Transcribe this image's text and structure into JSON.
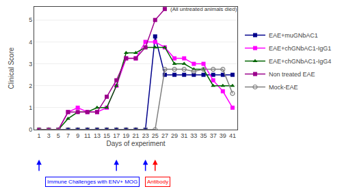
{
  "chart_data": {
    "type": "line",
    "xlabel": "Days of experiment",
    "ylabel": "Clinical Score",
    "x": [
      1,
      3,
      5,
      7,
      9,
      11,
      13,
      15,
      17,
      19,
      21,
      23,
      25,
      27,
      29,
      31,
      33,
      35,
      37,
      39,
      41
    ],
    "series": [
      {
        "name": "EAE+muGNbAC1",
        "color": "#00008B",
        "marker": "square",
        "values": [
          0,
          0,
          0,
          0,
          0,
          0,
          0,
          0,
          0,
          0,
          0,
          0,
          4.25,
          2.5,
          2.5,
          2.5,
          2.5,
          2.5,
          2.5,
          2.5,
          2.5
        ]
      },
      {
        "name": "EAE+chGNbAC1-IgG1",
        "color": "#FF00FF",
        "marker": "square",
        "values": [
          0,
          0,
          0,
          0.8,
          1.0,
          0.8,
          0.8,
          1.0,
          2.0,
          3.25,
          3.25,
          4.0,
          4.0,
          3.75,
          3.25,
          3.25,
          3.0,
          3.0,
          2.25,
          1.75,
          1.0
        ]
      },
      {
        "name": "EAE+chGNbAC1-IgG4",
        "color": "#006400",
        "marker": "triangle-up",
        "values": [
          0,
          0,
          0,
          0.5,
          0.8,
          0.8,
          1.0,
          1.0,
          2.0,
          3.5,
          3.5,
          3.75,
          3.75,
          3.75,
          3.0,
          3.0,
          2.75,
          2.75,
          2.0,
          2.0,
          2.0
        ]
      },
      {
        "name": "Non treated EAE",
        "color": "#9B008B",
        "marker": "square",
        "values": [
          0,
          0,
          0,
          0.8,
          0.8,
          0.8,
          0.8,
          1.5,
          2.25,
          3.25,
          3.25,
          3.75,
          5.0,
          5.5,
          null,
          null,
          null,
          null,
          null,
          null,
          null
        ]
      },
      {
        "name": "Mock-EAE",
        "color": "#808080",
        "marker": "circle-open",
        "values": [
          0,
          0,
          0,
          0,
          0,
          0,
          0,
          0,
          0,
          0,
          0,
          0,
          0,
          2.75,
          2.75,
          2.75,
          2.65,
          2.75,
          2.75,
          2.75,
          1.65
        ]
      }
    ],
    "xlim": [
      0,
      42
    ],
    "xticks": [
      1,
      3,
      5,
      7,
      9,
      11,
      13,
      15,
      17,
      19,
      21,
      23,
      25,
      27,
      29,
      31,
      33,
      35,
      37,
      39,
      41
    ],
    "ylim": [
      0,
      5.6
    ],
    "yticks": [
      0,
      1,
      2,
      3,
      4,
      5
    ],
    "grid": "y",
    "legend": "right",
    "annotations": [
      {
        "text": "(All untreated animals died)",
        "x": 27,
        "y": 5.5
      }
    ],
    "arrows": [
      {
        "x": 1,
        "color": "blue"
      },
      {
        "x": 17,
        "color": "blue"
      },
      {
        "x": 23,
        "color": "blue"
      },
      {
        "x": 25,
        "color": "red"
      }
    ],
    "boxes": [
      {
        "text": "Immune Challenges with ENV+ MOG",
        "x": 12,
        "color": "blue"
      },
      {
        "text": "Antibody",
        "x": 25.5,
        "color": "red"
      }
    ]
  }
}
